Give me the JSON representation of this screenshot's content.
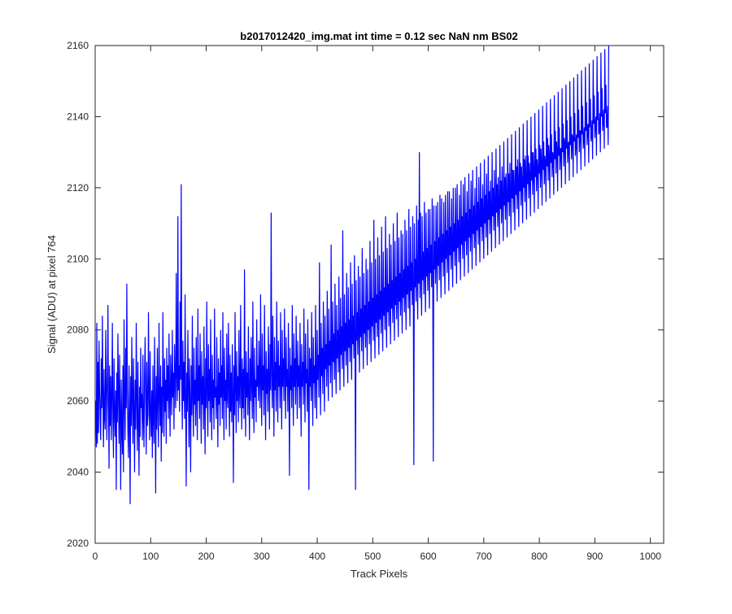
{
  "chart_data": {
    "type": "line",
    "title": "b2017012420_img.mat int time = 0.12 sec  NaN nm BS02",
    "xlabel": "Track Pixels",
    "ylabel": "Signal (ADU) at pixel 764",
    "xlim": [
      0,
      1024
    ],
    "ylim": [
      2020,
      2160
    ],
    "xticks": [
      0,
      100,
      200,
      300,
      400,
      500,
      600,
      700,
      800,
      900,
      1000
    ],
    "yticks": [
      2020,
      2040,
      2060,
      2080,
      2100,
      2120,
      2140,
      2160
    ],
    "grid": false,
    "legend": "none",
    "series": [
      {
        "color": "#0000ff",
        "x_start": 1,
        "x_step": 1,
        "values": [
          2060,
          2047,
          2082,
          2048,
          2071,
          2051,
          2077,
          2063,
          2055,
          2049,
          2072,
          2058,
          2084,
          2061,
          2047,
          2069,
          2055,
          2052,
          2080,
          2066,
          2049,
          2064,
          2087,
          2059,
          2041,
          2070,
          2053,
          2067,
          2049,
          2061,
          2082,
          2055,
          2044,
          2072,
          2057,
          2050,
          2063,
          2035,
          2068,
          2054,
          2079,
          2061,
          2048,
          2073,
          2056,
          2035,
          2066,
          2052,
          2045,
          2070,
          2040,
          2083,
          2061,
          2049,
          2075,
          2058,
          2093,
          2063,
          2051,
          2044,
          2070,
          2056,
          2031,
          2067,
          2053,
          2078,
          2060,
          2048,
          2072,
          2057,
          2040,
          2066,
          2052,
          2082,
          2061,
          2046,
          2071,
          2055,
          2039,
          2064,
          2050,
          2075,
          2058,
          2062,
          2049,
          2073,
          2055,
          2047,
          2068,
          2078,
          2060,
          2045,
          2071,
          2053,
          2056,
          2085,
          2062,
          2049,
          2074,
          2057,
          2050,
          2063,
          2044,
          2070,
          2055,
          2048,
          2078,
          2060,
          2034,
          2067,
          2052,
          2075,
          2058,
          2047,
          2082,
          2061,
          2053,
          2070,
          2043,
          2064,
          2051,
          2085,
          2063,
          2050,
          2072,
          2057,
          2066,
          2048,
          2075,
          2060,
          2070,
          2055,
          2079,
          2062,
          2050,
          2073,
          2065,
          2056,
          2080,
          2061,
          2068,
          2052,
          2076,
          2065,
          2058,
          2096,
          2067,
          2060,
          2112,
          2063,
          2070,
          2057,
          2088,
          2066,
          2121,
          2064,
          2052,
          2077,
          2060,
          2071,
          2055,
          2090,
          2061,
          2036,
          2068,
          2057,
          2080,
          2063,
          2047,
          2072,
          2058,
          2040,
          2070,
          2056,
          2084,
          2061,
          2050,
          2075,
          2059,
          2066,
          2053,
          2078,
          2062,
          2049,
          2086,
          2060,
          2070,
          2055,
          2079,
          2063,
          2048,
          2074,
          2059,
          2067,
          2052,
          2081,
          2061,
          2045,
          2072,
          2058,
          2088,
          2062,
          2050,
          2076,
          2060,
          2069,
          2054,
          2083,
          2062,
          2049,
          2073,
          2058,
          2066,
          2052,
          2086,
          2061,
          2064,
          2055,
          2078,
          2062,
          2047,
          2072,
          2059,
          2068,
          2053,
          2080,
          2061,
          2070,
          2055,
          2085,
          2063,
          2049,
          2075,
          2060,
          2066,
          2052,
          2079,
          2061,
          2058,
          2082,
          2064,
          2050,
          2073,
          2057,
          2068,
          2054,
          2076,
          2062,
          2037,
          2070,
          2056,
          2085,
          2063,
          2051,
          2074,
          2060,
          2067,
          2054,
          2080,
          2062,
          2058,
          2087,
          2065,
          2052,
          2072,
          2058,
          2069,
          2055,
          2097,
          2064,
          2050,
          2074,
          2061,
          2068,
          2056,
          2081,
          2063,
          2049,
          2072,
          2060,
          2078,
          2065,
          2055,
          2088,
          2062,
          2051,
          2075,
          2061,
          2066,
          2054,
          2083,
          2064,
          2070,
          2060,
          2077,
          2066,
          2058,
          2090,
          2065,
          2053,
          2079,
          2063,
          2070,
          2056,
          2087,
          2066,
          2049,
          2074,
          2062,
          2069,
          2057,
          2081,
          2066,
          2052,
          2076,
          2063,
          2113,
          2068,
          2058,
          2084,
          2065,
          2050,
          2078,
          2063,
          2071,
          2057,
          2088,
          2067,
          2054,
          2077,
          2064,
          2070,
          2058,
          2085,
          2066,
          2052,
          2080,
          2064,
          2072,
          2060,
          2086,
          2067,
          2055,
          2078,
          2064,
          2069,
          2057,
          2082,
          2066,
          2039,
          2075,
          2063,
          2070,
          2058,
          2087,
          2066,
          2053,
          2079,
          2064,
          2072,
          2059,
          2084,
          2067,
          2055,
          2077,
          2064,
          2070,
          2058,
          2082,
          2066,
          2050,
          2076,
          2064,
          2071,
          2059,
          2086,
          2067,
          2054,
          2079,
          2065,
          2069,
          2057,
          2083,
          2066,
          2035,
          2075,
          2064,
          2072,
          2060,
          2085,
          2067,
          2053,
          2078,
          2065,
          2070,
          2058,
          2087,
          2067,
          2055,
          2080,
          2066,
          2073,
          2061,
          2099,
          2069,
          2056,
          2082,
          2067,
          2075,
          2062,
          2088,
          2070,
          2057,
          2084,
          2069,
          2076,
          2064,
          2091,
          2071,
          2060,
          2086,
          2070,
          2077,
          2065,
          2104,
          2072,
          2061,
          2088,
          2071,
          2079,
          2066,
          2093,
          2073,
          2062,
          2087,
          2072,
          2080,
          2068,
          2095,
          2074,
          2063,
          2089,
          2073,
          2081,
          2069,
          2108,
          2075,
          2064,
          2090,
          2074,
          2082,
          2070,
          2096,
          2076,
          2065,
          2092,
          2075,
          2083,
          2071,
          2099,
          2077,
          2066,
          2093,
          2076,
          2084,
          2072,
          2101,
          2078,
          2035,
          2094,
          2077,
          2085,
          2073,
          2098,
          2079,
          2068,
          2095,
          2078,
          2086,
          2074,
          2103,
          2080,
          2069,
          2096,
          2079,
          2087,
          2075,
          2100,
          2081,
          2070,
          2097,
          2080,
          2088,
          2076,
          2105,
          2082,
          2071,
          2099,
          2081,
          2089,
          2077,
          2111,
          2083,
          2072,
          2100,
          2082,
          2090,
          2078,
          2106,
          2084,
          2073,
          2101,
          2083,
          2091,
          2079,
          2109,
          2085,
          2074,
          2102,
          2084,
          2092,
          2080,
          2112,
          2086,
          2075,
          2103,
          2085,
          2093,
          2081,
          2107,
          2087,
          2076,
          2104,
          2086,
          2094,
          2082,
          2110,
          2088,
          2077,
          2105,
          2087,
          2095,
          2083,
          2113,
          2089,
          2078,
          2106,
          2088,
          2096,
          2084,
          2108,
          2090,
          2079,
          2107,
          2089,
          2097,
          2085,
          2111,
          2091,
          2080,
          2108,
          2090,
          2098,
          2086,
          2114,
          2092,
          2081,
          2109,
          2091,
          2099,
          2087,
          2112,
          2093,
          2042,
          2110,
          2092,
          2100,
          2088,
          2115,
          2094,
          2083,
          2111,
          2093,
          2130,
          2089,
          2113,
          2095,
          2084,
          2112,
          2094,
          2102,
          2090,
          2116,
          2096,
          2085,
          2113,
          2095,
          2103,
          2091,
          2114,
          2097,
          2086,
          2114,
          2096,
          2104,
          2092,
          2117,
          2098,
          2043,
          2115,
          2097,
          2105,
          2093,
          2115,
          2099,
          2088,
          2116,
          2098,
          2106,
          2094,
          2118,
          2100,
          2089,
          2117,
          2099,
          2107,
          2095,
          2116,
          2101,
          2090,
          2118,
          2100,
          2108,
          2096,
          2119,
          2102,
          2091,
          2119,
          2101,
          2109,
          2097,
          2117,
          2103,
          2092,
          2120,
          2102,
          2110,
          2098,
          2120,
          2104,
          2093,
          2121,
          2103,
          2111,
          2099,
          2118,
          2105,
          2094,
          2122,
          2104,
          2112,
          2100,
          2121,
          2106,
          2095,
          2123,
          2105,
          2113,
          2101,
          2119,
          2107,
          2096,
          2124,
          2106,
          2114,
          2102,
          2122,
          2108,
          2097,
          2125,
          2107,
          2115,
          2103,
          2120,
          2109,
          2098,
          2126,
          2108,
          2116,
          2104,
          2123,
          2110,
          2099,
          2127,
          2109,
          2117,
          2105,
          2121,
          2111,
          2100,
          2128,
          2110,
          2118,
          2106,
          2124,
          2112,
          2101,
          2129,
          2111,
          2119,
          2107,
          2122,
          2113,
          2102,
          2130,
          2112,
          2120,
          2108,
          2125,
          2114,
          2103,
          2131,
          2113,
          2121,
          2109,
          2123,
          2115,
          2104,
          2132,
          2114,
          2122,
          2110,
          2126,
          2116,
          2105,
          2133,
          2115,
          2123,
          2111,
          2124,
          2117,
          2106,
          2134,
          2116,
          2124,
          2112,
          2127,
          2118,
          2107,
          2135,
          2117,
          2125,
          2113,
          2125,
          2119,
          2108,
          2136,
          2118,
          2126,
          2114,
          2128,
          2120,
          2109,
          2137,
          2119,
          2127,
          2115,
          2126,
          2121,
          2110,
          2138,
          2120,
          2128,
          2116,
          2129,
          2122,
          2111,
          2139,
          2121,
          2129,
          2117,
          2127,
          2123,
          2112,
          2140,
          2122,
          2130,
          2118,
          2130,
          2124,
          2113,
          2141,
          2123,
          2131,
          2119,
          2128,
          2125,
          2114,
          2142,
          2124,
          2132,
          2120,
          2131,
          2126,
          2115,
          2143,
          2125,
          2133,
          2121,
          2129,
          2127,
          2116,
          2144,
          2126,
          2134,
          2122,
          2132,
          2128,
          2117,
          2145,
          2127,
          2135,
          2123,
          2130,
          2129,
          2118,
          2146,
          2128,
          2136,
          2124,
          2133,
          2130,
          2119,
          2147,
          2129,
          2137,
          2125,
          2131,
          2131,
          2120,
          2148,
          2130,
          2138,
          2126,
          2134,
          2132,
          2121,
          2149,
          2131,
          2139,
          2127,
          2132,
          2133,
          2122,
          2150,
          2132,
          2140,
          2128,
          2135,
          2134,
          2123,
          2151,
          2133,
          2141,
          2129,
          2133,
          2135,
          2124,
          2152,
          2134,
          2142,
          2130,
          2136,
          2136,
          2125,
          2153,
          2135,
          2143,
          2131,
          2134,
          2137,
          2126,
          2154,
          2136,
          2144,
          2132,
          2137,
          2138,
          2127,
          2155,
          2137,
          2145,
          2133,
          2135,
          2139,
          2128,
          2156,
          2138,
          2146,
          2134,
          2138,
          2140,
          2129,
          2157,
          2139,
          2147,
          2135,
          2136,
          2141,
          2130,
          2158,
          2140,
          2148,
          2136,
          2139,
          2142,
          2131,
          2159,
          2141,
          2149,
          2137,
          2137,
          2143,
          2132,
          2160
        ]
      }
    ]
  }
}
